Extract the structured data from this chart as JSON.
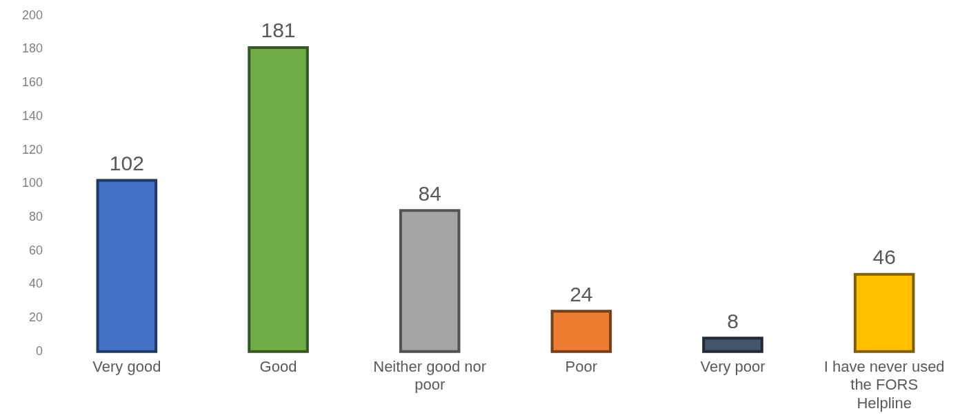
{
  "chart_data": {
    "type": "bar",
    "categories": [
      "Very good",
      "Good",
      "Neither good nor poor",
      "Poor",
      "Very poor",
      "I have never used the FORS Helpline"
    ],
    "values": [
      102,
      181,
      84,
      24,
      8,
      46
    ],
    "colors": [
      "#4472c4",
      "#70ad47",
      "#a5a5a5",
      "#ed7d31",
      "#44546a",
      "#ffc000"
    ],
    "ylim": [
      0,
      200
    ],
    "yticks": [
      0,
      20,
      40,
      60,
      80,
      100,
      120,
      140,
      160,
      180,
      200
    ],
    "grid": false,
    "legend": false,
    "data_labels": true
  }
}
